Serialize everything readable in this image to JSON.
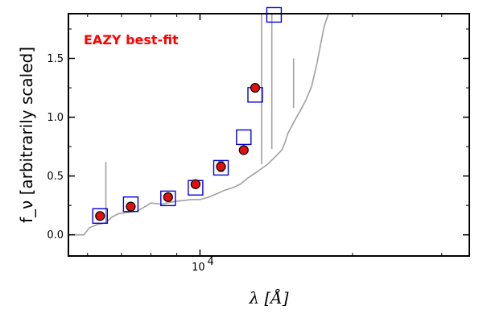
{
  "chart_data": {
    "type": "scatter",
    "title": "",
    "annotation": "EAZY best-fit",
    "annotation_color": "#ff0000",
    "xlabel": "λ [Å]",
    "ylabel": "f_ν [arbitrarily scaled]",
    "xscale": "log",
    "xlim": [
      5500,
      34000
    ],
    "ylim": [
      -0.18,
      1.88
    ],
    "yticks": [
      0.0,
      0.5,
      1.0,
      1.5
    ],
    "ytick_labels": [
      "0.0",
      "0.5",
      "1.0",
      "1.5"
    ],
    "xtick_labels": [
      {
        "value": 10000,
        "base": "10",
        "exp": "4"
      }
    ],
    "grid": false,
    "series": [
      {
        "kind": "template",
        "color": "#a0a0a0",
        "x": [
          5500,
          5900,
          6050,
          6300,
          6500,
          6700,
          6900,
          7200,
          7500,
          7800,
          8000,
          8400,
          8800,
          9200,
          9600,
          10000,
          10400,
          10800,
          11200,
          11600,
          12000,
          12400,
          12800,
          13200,
          13600,
          13900,
          14200,
          14500,
          14700,
          14900,
          15200,
          15500,
          15800,
          16200,
          16600,
          17000,
          17300,
          17600,
          18000
        ],
        "y": [
          0.0,
          0.0,
          0.06,
          0.09,
          0.1,
          0.15,
          0.18,
          0.19,
          0.2,
          0.24,
          0.27,
          0.26,
          0.28,
          0.29,
          0.3,
          0.3,
          0.32,
          0.35,
          0.38,
          0.4,
          0.43,
          0.48,
          0.52,
          0.56,
          0.6,
          0.64,
          0.68,
          0.72,
          0.78,
          0.86,
          0.93,
          1.0,
          1.06,
          1.15,
          1.26,
          1.45,
          1.62,
          1.78,
          1.9
        ]
      },
      {
        "kind": "template_spikes",
        "color": "#a0a0a0",
        "x": [
          6520,
          13230,
          13860,
          15300
        ],
        "y_from": [
          0.1,
          0.6,
          0.73,
          1.08
        ],
        "y_to": [
          0.62,
          1.88,
          1.88,
          1.5
        ]
      },
      {
        "kind": "model",
        "color": "#0000dd",
        "x": [
          6350,
          7300,
          8650,
          9800,
          11000,
          12200,
          12850,
          14000
        ],
        "y": [
          0.16,
          0.26,
          0.31,
          0.4,
          0.57,
          0.83,
          1.19,
          1.87
        ]
      },
      {
        "kind": "observed",
        "color": "#e01010",
        "x": [
          6350,
          7300,
          8650,
          9800,
          11000,
          12200,
          12850
        ],
        "y": [
          0.16,
          0.24,
          0.32,
          0.43,
          0.58,
          0.72,
          1.25
        ],
        "err": [
          0.01,
          0.01,
          0.01,
          0.01,
          0.04,
          0.03,
          0.02
        ]
      }
    ]
  }
}
